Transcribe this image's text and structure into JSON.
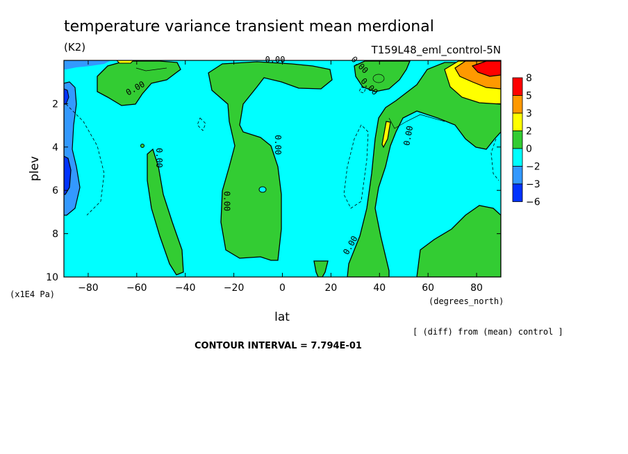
{
  "chart_data": {
    "type": "heatmap",
    "title": "temperature variance transient mean merdional",
    "units": "(K2)",
    "experiment": "T159L48_eml_control-5N",
    "xlabel": "lat",
    "x_unit": "(degrees_north)",
    "ylabel": "plev",
    "y_unit": "(x1E4 Pa)",
    "x_ticks": [
      -80,
      -60,
      -40,
      -20,
      0,
      20,
      40,
      60,
      80
    ],
    "y_ticks": [
      2,
      4,
      6,
      8,
      10
    ],
    "xlim": [
      -90,
      90
    ],
    "ylim": [
      10,
      0
    ],
    "footnote": "[ (diff) from (mean) control ]",
    "contour_interval": "CONTOUR INTERVAL = 7.794E-01",
    "zero_contour_labels": [
      "0.00",
      "0.00",
      "0.00",
      "0.00",
      "0.00",
      "0.00",
      "0.00",
      "0.00",
      "0.00"
    ],
    "colorbar": {
      "labels": [
        "8",
        "5",
        "3",
        "2",
        "0",
        "-2",
        "-3",
        "-6"
      ],
      "colors": [
        "#ff0000",
        "#ff9900",
        "#ffff00",
        "#33cc33",
        "#00ffff",
        "#3399ff",
        "#0033ff"
      ]
    }
  }
}
